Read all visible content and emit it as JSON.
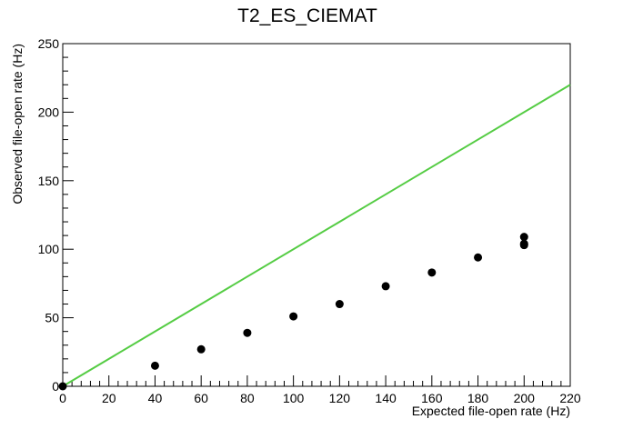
{
  "chart_data": {
    "type": "scatter",
    "title": "T2_ES_CIEMAT",
    "xlabel": "Expected file-open rate (Hz)",
    "ylabel": "Observed file-open rate (Hz)",
    "xlim": [
      0,
      220
    ],
    "ylim": [
      0,
      250
    ],
    "x_ticks": [
      0,
      20,
      40,
      60,
      80,
      100,
      120,
      140,
      160,
      180,
      200,
      220
    ],
    "y_ticks": [
      0,
      50,
      100,
      150,
      200,
      250
    ],
    "grid": false,
    "series": [
      {
        "points": [
          {
            "x": 0,
            "y": 0
          },
          {
            "x": 40,
            "y": 15
          },
          {
            "x": 60,
            "y": 27
          },
          {
            "x": 80,
            "y": 39
          },
          {
            "x": 100,
            "y": 51
          },
          {
            "x": 120,
            "y": 60
          },
          {
            "x": 140,
            "y": 73
          },
          {
            "x": 160,
            "y": 83
          },
          {
            "x": 180,
            "y": 94
          },
          {
            "x": 200,
            "y": 103
          },
          {
            "x": 200,
            "y": 104
          },
          {
            "x": 200,
            "y": 109
          }
        ],
        "color": "#000000"
      }
    ],
    "reference_line": {
      "x": [
        0,
        220
      ],
      "y": [
        0,
        220
      ],
      "color": "#55cc44"
    }
  }
}
